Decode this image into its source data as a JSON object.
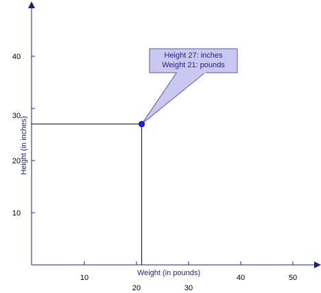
{
  "chart_data": {
    "type": "scatter",
    "xlabel": "Weight (in pounds)",
    "ylabel": "Height (in inches)",
    "x_ticks": [
      10,
      20,
      30,
      40,
      50
    ],
    "y_ticks": [
      10,
      20,
      30,
      40
    ],
    "point": {
      "x": 21,
      "y": 27
    },
    "annotation": {
      "line1": "Height 27: inches",
      "line2": "Weight 21: pounds"
    },
    "grid": false,
    "colors": {
      "axis": "#1f1f7a",
      "point": "#1a1aff",
      "callout_fill": "#c8c8f0",
      "callout_stroke": "#5a5aa0",
      "guide": "#000000"
    }
  }
}
